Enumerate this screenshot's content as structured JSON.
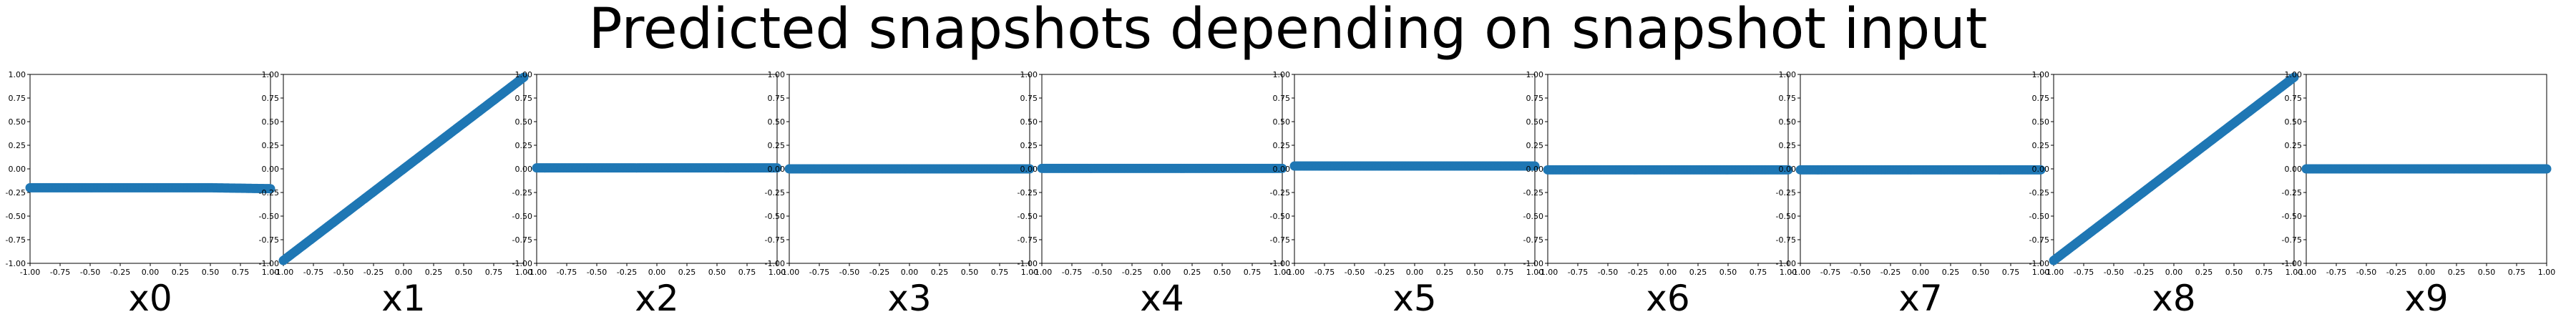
{
  "figure": {
    "title": "Predicted snapshots depending on snapshot input"
  },
  "style": {
    "marker_color": "#1f77b4",
    "axis_color": "#000000",
    "background": "#ffffff"
  },
  "chart_data": [
    {
      "type": "scatter",
      "xlabel": "x0",
      "xlim": [
        -1,
        1
      ],
      "ylim": [
        -1,
        1
      ],
      "xticks": [
        "-1.00",
        "-0.75",
        "-0.50",
        "-0.25",
        "0.00",
        "0.25",
        "0.50",
        "0.75",
        "1.00"
      ],
      "yticks": [
        "-1.00",
        "-0.75",
        "-0.50",
        "-0.25",
        "0.00",
        "0.25",
        "0.50",
        "0.75",
        "1.00"
      ],
      "series": [
        {
          "x": [
            -1,
            0.5,
            1
          ],
          "y": [
            -0.2,
            -0.2,
            -0.21
          ]
        }
      ]
    },
    {
      "type": "scatter",
      "xlabel": "x1",
      "xlim": [
        -1,
        1
      ],
      "ylim": [
        -1,
        1
      ],
      "xticks": [
        "-1.00",
        "-0.75",
        "-0.50",
        "-0.25",
        "0.00",
        "0.25",
        "0.50",
        "0.75",
        "1.00"
      ],
      "yticks": [
        "-1.00",
        "-0.75",
        "-0.50",
        "-0.25",
        "0.00",
        "0.25",
        "0.50",
        "0.75",
        "1.00"
      ],
      "series": [
        {
          "x": [
            -1,
            1
          ],
          "y": [
            -0.97,
            0.97
          ]
        }
      ]
    },
    {
      "type": "scatter",
      "xlabel": "x2",
      "xlim": [
        -1,
        1
      ],
      "ylim": [
        -1,
        1
      ],
      "xticks": [
        "-1.00",
        "-0.75",
        "-0.50",
        "-0.25",
        "0.00",
        "0.25",
        "0.50",
        "0.75",
        "1.00"
      ],
      "yticks": [
        "-1.00",
        "-0.75",
        "-0.50",
        "-0.25",
        "0.00",
        "0.25",
        "0.50",
        "0.75",
        "1.00"
      ],
      "series": [
        {
          "x": [
            -1,
            1
          ],
          "y": [
            0.01,
            0.01
          ]
        }
      ]
    },
    {
      "type": "scatter",
      "xlabel": "x3",
      "xlim": [
        -1,
        1
      ],
      "ylim": [
        -1,
        1
      ],
      "xticks": [
        "-1.00",
        "-0.75",
        "-0.50",
        "-0.25",
        "0.00",
        "0.25",
        "0.50",
        "0.75",
        "1.00"
      ],
      "yticks": [
        "-1.00",
        "-0.75",
        "-0.50",
        "-0.25",
        "0.00",
        "0.25",
        "0.50",
        "0.75",
        "1.00"
      ],
      "series": [
        {
          "x": [
            -1,
            1
          ],
          "y": [
            0.0,
            0.0
          ]
        }
      ]
    },
    {
      "type": "scatter",
      "xlabel": "x4",
      "xlim": [
        -1,
        1
      ],
      "ylim": [
        -1,
        1
      ],
      "xticks": [
        "-1.00",
        "-0.75",
        "-0.50",
        "-0.25",
        "0.00",
        "0.25",
        "0.50",
        "0.75",
        "1.00"
      ],
      "yticks": [
        "-1.00",
        "-0.75",
        "-0.50",
        "-0.25",
        "0.00",
        "0.25",
        "0.50",
        "0.75",
        "1.00"
      ],
      "series": [
        {
          "x": [
            -1,
            1
          ],
          "y": [
            0.005,
            0.005
          ]
        }
      ]
    },
    {
      "type": "scatter",
      "xlabel": "x5",
      "xlim": [
        -1,
        1
      ],
      "ylim": [
        -1,
        1
      ],
      "xticks": [
        "-1.00",
        "-0.75",
        "-0.50",
        "-0.25",
        "0.00",
        "0.25",
        "0.50",
        "0.75",
        "1.00"
      ],
      "yticks": [
        "-1.00",
        "-0.75",
        "-0.50",
        "-0.25",
        "0.00",
        "0.25",
        "0.50",
        "0.75",
        "1.00"
      ],
      "series": [
        {
          "x": [
            -1,
            1
          ],
          "y": [
            0.03,
            0.03
          ]
        }
      ]
    },
    {
      "type": "scatter",
      "xlabel": "x6",
      "xlim": [
        -1,
        1
      ],
      "ylim": [
        -1,
        1
      ],
      "xticks": [
        "-1.00",
        "-0.75",
        "-0.50",
        "-0.25",
        "0.00",
        "0.25",
        "0.50",
        "0.75",
        "1.00"
      ],
      "yticks": [
        "-1.00",
        "-0.75",
        "-0.50",
        "-0.25",
        "0.00",
        "0.25",
        "0.50",
        "0.75",
        "1.00"
      ],
      "series": [
        {
          "x": [
            -1,
            1
          ],
          "y": [
            -0.01,
            -0.01
          ]
        }
      ]
    },
    {
      "type": "scatter",
      "xlabel": "x7",
      "xlim": [
        -1,
        1
      ],
      "ylim": [
        -1,
        1
      ],
      "xticks": [
        "-1.00",
        "-0.75",
        "-0.50",
        "-0.25",
        "0.00",
        "0.25",
        "0.50",
        "0.75",
        "1.00"
      ],
      "yticks": [
        "-1.00",
        "-0.75",
        "-0.50",
        "-0.25",
        "0.00",
        "0.25",
        "0.50",
        "0.75",
        "1.00"
      ],
      "series": [
        {
          "x": [
            -1,
            1
          ],
          "y": [
            -0.01,
            -0.01
          ]
        }
      ]
    },
    {
      "type": "scatter",
      "xlabel": "x8",
      "xlim": [
        -1,
        1
      ],
      "ylim": [
        -1,
        1
      ],
      "xticks": [
        "-1.00",
        "-0.75",
        "-0.50",
        "-0.25",
        "0.00",
        "0.25",
        "0.50",
        "0.75",
        "1.00"
      ],
      "yticks": [
        "-1.00",
        "-0.75",
        "-0.50",
        "-0.25",
        "0.00",
        "0.25",
        "0.50",
        "0.75",
        "1.00"
      ],
      "series": [
        {
          "x": [
            -1,
            1
          ],
          "y": [
            -0.97,
            0.97
          ]
        }
      ]
    },
    {
      "type": "scatter",
      "xlabel": "x9",
      "xlim": [
        -1,
        1
      ],
      "ylim": [
        -1,
        1
      ],
      "xticks": [
        "-1.00",
        "-0.75",
        "-0.50",
        "-0.25",
        "0.00",
        "0.25",
        "0.50",
        "0.75",
        "1.00"
      ],
      "yticks": [
        "-1.00",
        "-0.75",
        "-0.50",
        "-0.25",
        "0.00",
        "0.25",
        "0.50",
        "0.75",
        "1.00"
      ],
      "series": [
        {
          "x": [
            -1,
            1
          ],
          "y": [
            0.0,
            0.0
          ]
        }
      ]
    }
  ]
}
